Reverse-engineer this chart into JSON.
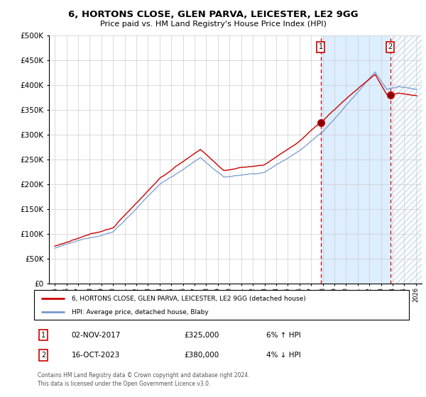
{
  "title": "6, HORTONS CLOSE, GLEN PARVA, LEICESTER, LE2 9GG",
  "subtitle": "Price paid vs. HM Land Registry's House Price Index (HPI)",
  "sale1_date": "02-NOV-2017",
  "sale1_year": 2017.833,
  "sale1_price": 325000,
  "sale1_pct": "6% ↑ HPI",
  "sale2_date": "16-OCT-2023",
  "sale2_year": 2023.792,
  "sale2_price": 380000,
  "sale2_pct": "4% ↓ HPI",
  "legend_line1": "6, HORTONS CLOSE, GLEN PARVA, LEICESTER, LE2 9GG (detached house)",
  "legend_line2": "HPI: Average price, detached house, Blaby",
  "footer": "Contains HM Land Registry data © Crown copyright and database right 2024.\nThis data is licensed under the Open Government Licence v3.0.",
  "hpi_color": "#7799cc",
  "price_color": "#cc0000",
  "shade_color": "#ddeeff",
  "bg_color": "#ffffff",
  "grid_color": "#cccccc",
  "xlim_left": 1994.5,
  "xlim_right": 2026.5,
  "ylim_bottom": 0,
  "ylim_top": 500000,
  "ytick_interval": 50000
}
